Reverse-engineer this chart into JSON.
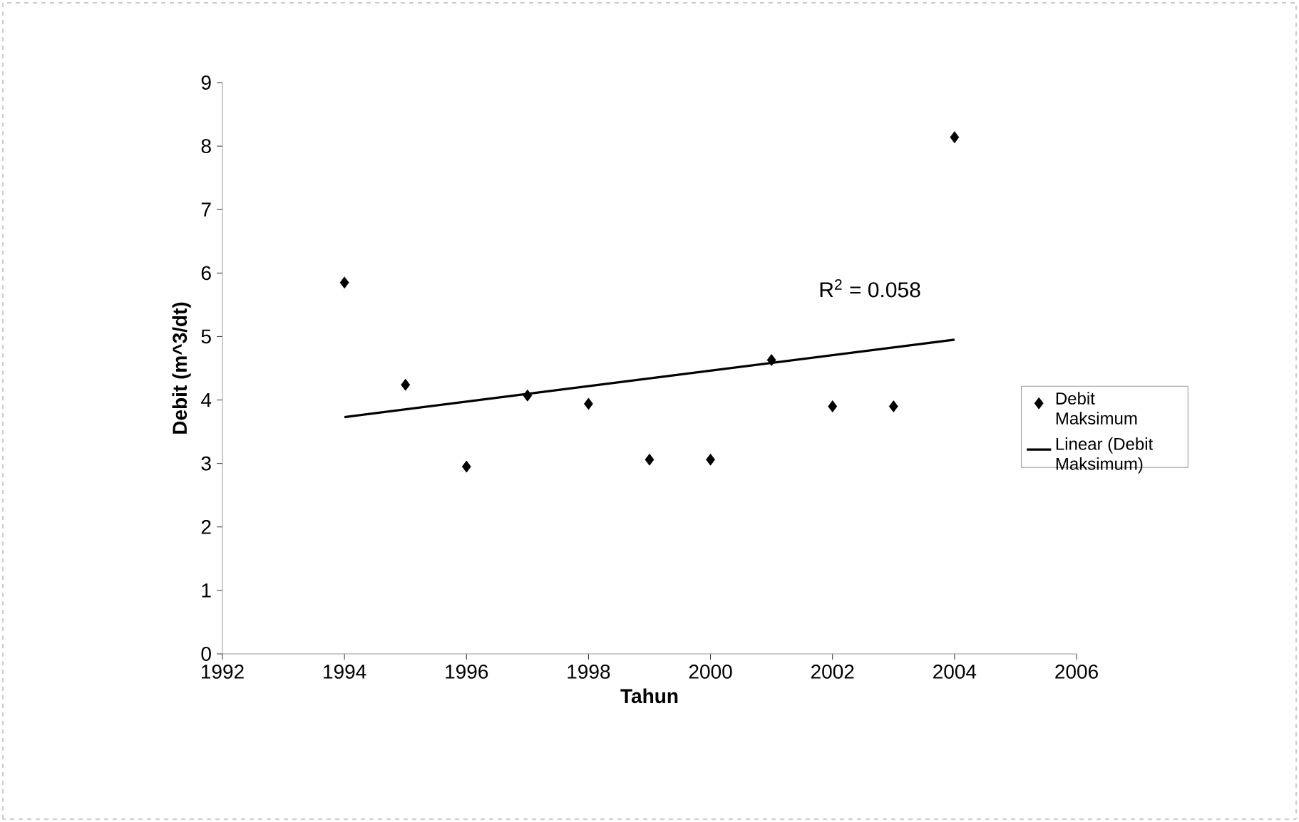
{
  "chart_data": {
    "type": "scatter",
    "xlabel": "Tahun",
    "ylabel": "Debit (m^3/dt)",
    "x": [
      1994,
      1995,
      1996,
      1997,
      1998,
      1999,
      2000,
      2001,
      2002,
      2003,
      2004
    ],
    "series": [
      {
        "name": "Debit Maksimum",
        "marker": "diamond",
        "color": "#000000",
        "values": [
          5.85,
          4.24,
          2.95,
          4.07,
          3.94,
          3.06,
          3.06,
          4.63,
          3.9,
          3.9,
          8.14
        ]
      },
      {
        "name": "Linear (Debit Maksimum)",
        "type": "line",
        "marker": "none",
        "color": "#000000",
        "x": [
          1994,
          2004
        ],
        "values": [
          3.73,
          4.95
        ]
      }
    ],
    "annotations": [
      "R$^{2}$ = 0.058"
    ],
    "xlim": [
      1992,
      2006
    ],
    "xticks": [
      1992,
      1994,
      1996,
      1998,
      2000,
      2002,
      2004,
      2006
    ],
    "ylim": [
      0,
      9
    ],
    "yticks": [
      0,
      1,
      2,
      3,
      4,
      5,
      6,
      7,
      8,
      9
    ],
    "legend": "right"
  }
}
